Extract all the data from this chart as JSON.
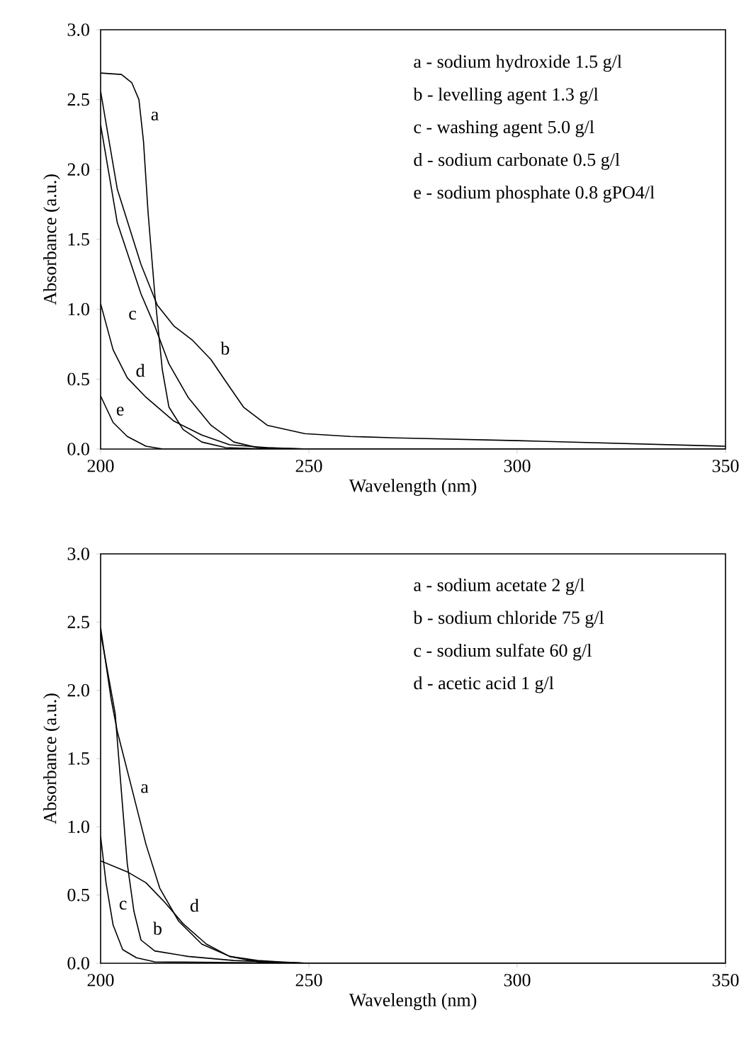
{
  "chart_data": [
    {
      "type": "line",
      "xlabel": "Wavelength (nm)",
      "ylabel": "Absorbance (a.u.)",
      "xlim": [
        200,
        350
      ],
      "xticks": [
        200,
        250,
        300,
        350
      ],
      "ylim": [
        0,
        3.0
      ],
      "yticks": [
        {
          "value": 0,
          "label": "0.0"
        },
        {
          "value": 0.5,
          "label": "0.5"
        },
        {
          "value": 1,
          "label": "1.0"
        },
        {
          "value": 1.5,
          "label": "1.5"
        },
        {
          "value": 2,
          "label": "2.0"
        },
        {
          "value": 2.5,
          "label": "2.5"
        },
        {
          "value": 3,
          "label": "3.0"
        }
      ],
      "series": [
        {
          "name": "a",
          "color": "#000000",
          "x": [
            200,
            205,
            207.5,
            209.2,
            210.3,
            211.4,
            213,
            214.8,
            216.4,
            219.8,
            224.3,
            230,
            240,
            250,
            300,
            350
          ],
          "values": [
            2.69,
            2.68,
            2.62,
            2.5,
            2.2,
            1.69,
            1.11,
            0.57,
            0.3,
            0.14,
            0.05,
            0.01,
            0,
            0,
            0,
            0
          ]
        },
        {
          "name": "b",
          "color": "#000000",
          "x": [
            200,
            204,
            209.7,
            213.6,
            217.6,
            222,
            226.5,
            229.9,
            234.3,
            240,
            249,
            260,
            271,
            300,
            350
          ],
          "values": [
            2.56,
            1.86,
            1.32,
            1.03,
            0.88,
            0.78,
            0.64,
            0.49,
            0.3,
            0.17,
            0.11,
            0.09,
            0.08,
            0.06,
            0.02
          ]
        },
        {
          "name": "c",
          "color": "#000000",
          "x": [
            200,
            204,
            209.7,
            213,
            216.4,
            221,
            226.5,
            232,
            237.7,
            250,
            300,
            350
          ],
          "values": [
            2.32,
            1.62,
            1.11,
            0.88,
            0.61,
            0.37,
            0.17,
            0.05,
            0.01,
            0,
            0,
            0
          ]
        },
        {
          "name": "d",
          "color": "#000000",
          "x": [
            200,
            203,
            206.4,
            210.9,
            217.6,
            224.3,
            231,
            240,
            250,
            300,
            350
          ],
          "values": [
            1.04,
            0.71,
            0.51,
            0.37,
            0.2,
            0.1,
            0.03,
            0.01,
            0,
            0,
            0
          ]
        },
        {
          "name": "e",
          "color": "#000000",
          "x": [
            200,
            203,
            206.4,
            210.9,
            215,
            250,
            300,
            350
          ],
          "values": [
            0.38,
            0.19,
            0.09,
            0.02,
            0,
            0,
            0,
            0
          ]
        }
      ],
      "annotations": [
        "a - sodium hydroxide 1.5 g/l",
        "b - levelling agent 1.3 g/l",
        "c - washing agent 5.0 g/l",
        "d - sodium carbonate 0.5 g/l",
        "e - sodium phosphate 0.8 gPO4/l"
      ]
    },
    {
      "type": "line",
      "xlabel": "Wavelength (nm)",
      "ylabel": "Absorbance (a.u.)",
      "xlim": [
        200,
        350
      ],
      "xticks": [
        200,
        250,
        300,
        350
      ],
      "ylim": [
        0,
        3.0
      ],
      "yticks": [
        {
          "value": 0,
          "label": "0.0"
        },
        {
          "value": 0.5,
          "label": "0.5"
        },
        {
          "value": 1,
          "label": "1.0"
        },
        {
          "value": 1.5,
          "label": "1.5"
        },
        {
          "value": 2,
          "label": "2.0"
        },
        {
          "value": 2.5,
          "label": "2.5"
        },
        {
          "value": 3,
          "label": "3.0"
        }
      ],
      "series": [
        {
          "name": "a",
          "color": "#000000",
          "x": [
            200,
            202.5,
            204,
            207.5,
            210.9,
            214.2,
            218.7,
            224.3,
            231,
            237.7,
            250,
            300,
            350
          ],
          "values": [
            2.46,
            1.94,
            1.7,
            1.28,
            0.87,
            0.55,
            0.31,
            0.14,
            0.05,
            0.01,
            0,
            0,
            0
          ]
        },
        {
          "name": "b",
          "color": "#000000",
          "x": [
            200,
            203.5,
            205.3,
            206.4,
            208,
            209.7,
            213,
            221,
            232,
            240,
            250,
            300,
            350
          ],
          "values": [
            2.42,
            1.83,
            1.14,
            0.73,
            0.38,
            0.17,
            0.09,
            0.05,
            0.02,
            0.01,
            0,
            0,
            0
          ]
        },
        {
          "name": "c",
          "color": "#000000",
          "x": [
            200,
            201.3,
            203,
            205.3,
            208.6,
            213,
            250,
            300,
            350
          ],
          "values": [
            0.93,
            0.59,
            0.28,
            0.1,
            0.04,
            0.01,
            0,
            0,
            0
          ]
        },
        {
          "name": "d",
          "color": "#000000",
          "x": [
            200,
            206.4,
            210.9,
            215.3,
            219.8,
            225.4,
            231,
            237.7,
            243,
            250,
            300,
            350
          ],
          "values": [
            0.75,
            0.67,
            0.59,
            0.45,
            0.29,
            0.14,
            0.05,
            0.02,
            0.01,
            0,
            0,
            0
          ]
        }
      ],
      "annotations": [
        "a - sodium acetate 2 g/l",
        "b - sodium chloride 75 g/l",
        "c - sodium sulfate 60 g/l",
        "d - acetic acid 1 g/l"
      ]
    }
  ]
}
